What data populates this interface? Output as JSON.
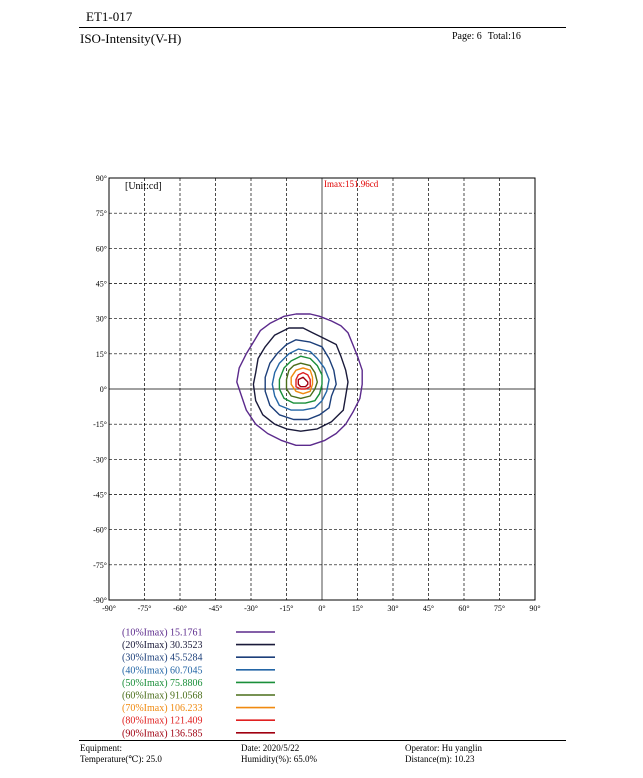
{
  "header": {
    "doc_id": "ET1-017",
    "title": "ISO-Intensity(V-H)",
    "page": "Page: 6",
    "total": "Total:16"
  },
  "chart_data": {
    "type": "contour",
    "unit_label": "[Unit:cd]",
    "imax_label": "Imax:151.96cd",
    "x_ticks": [
      "-90°",
      "-75°",
      "-60°",
      "-45°",
      "-30°",
      "-15°",
      "0°",
      "15°",
      "30°",
      "45°",
      "60°",
      "75°",
      "90°"
    ],
    "y_ticks": [
      "90°",
      "75°",
      "60°",
      "45°",
      "30°",
      "15°",
      "0°",
      "-15°",
      "-30°",
      "-45°",
      "-60°",
      "-75°",
      "-90°"
    ],
    "xlim": [
      -90,
      90
    ],
    "ylim": [
      -90,
      90
    ],
    "grid": true,
    "series": [
      {
        "label": "(10%Imax) 15.1761",
        "color": "#5b2a8c",
        "contour": [
          [
            -5,
            32
          ],
          [
            -1,
            31
          ],
          [
            4,
            29
          ],
          [
            8,
            27
          ],
          [
            11,
            24
          ],
          [
            13,
            19
          ],
          [
            15,
            14
          ],
          [
            17,
            8
          ],
          [
            17,
            2
          ],
          [
            16,
            -4
          ],
          [
            13,
            -10
          ],
          [
            10,
            -15
          ],
          [
            6,
            -19
          ],
          [
            1,
            -22
          ],
          [
            -5,
            -24
          ],
          [
            -11,
            -24
          ],
          [
            -17,
            -22
          ],
          [
            -23,
            -19
          ],
          [
            -28,
            -15
          ],
          [
            -32,
            -9
          ],
          [
            -34,
            -3
          ],
          [
            -36,
            3
          ],
          [
            -35,
            9
          ],
          [
            -32,
            15
          ],
          [
            -29,
            20
          ],
          [
            -26,
            25
          ],
          [
            -22,
            28
          ],
          [
            -16,
            31
          ],
          [
            -11,
            32
          ]
        ]
      },
      {
        "label": "(20%Imax) 30.3523",
        "color": "#1a1a3a",
        "contour": [
          [
            -14,
            26
          ],
          [
            -8,
            26
          ],
          [
            -4,
            24
          ],
          [
            0,
            22
          ],
          [
            6,
            19
          ],
          [
            8,
            14
          ],
          [
            10,
            8
          ],
          [
            11,
            3
          ],
          [
            10,
            -3
          ],
          [
            9,
            -9
          ],
          [
            4,
            -14
          ],
          [
            -2,
            -17
          ],
          [
            -9,
            -18
          ],
          [
            -15,
            -17
          ],
          [
            -20,
            -15
          ],
          [
            -25,
            -11
          ],
          [
            -28,
            -5
          ],
          [
            -29,
            2
          ],
          [
            -28,
            7
          ],
          [
            -27,
            13
          ],
          [
            -24,
            18
          ],
          [
            -20,
            23
          ]
        ]
      },
      {
        "label": "(30%Imax) 45.5284",
        "color": "#1c3f7a",
        "contour": [
          [
            -11,
            21
          ],
          [
            -5,
            20
          ],
          [
            0,
            18
          ],
          [
            3,
            13
          ],
          [
            5,
            8
          ],
          [
            6,
            2
          ],
          [
            4,
            -3
          ],
          [
            3,
            -8
          ],
          [
            -1,
            -11
          ],
          [
            -6,
            -13
          ],
          [
            -12,
            -13
          ],
          [
            -18,
            -11
          ],
          [
            -22,
            -7
          ],
          [
            -24,
            -1
          ],
          [
            -24,
            5
          ],
          [
            -22,
            11
          ],
          [
            -19,
            15
          ],
          [
            -15,
            19
          ]
        ]
      },
      {
        "label": "(40%Imax) 60.7045",
        "color": "#2466a6",
        "contour": [
          [
            -10,
            17
          ],
          [
            -5,
            16
          ],
          [
            -2,
            13
          ],
          [
            1,
            9
          ],
          [
            3,
            4
          ],
          [
            2,
            -1
          ],
          [
            0,
            -5
          ],
          [
            -3,
            -8
          ],
          [
            -8,
            -9
          ],
          [
            -13,
            -9
          ],
          [
            -18,
            -7
          ],
          [
            -20,
            -3
          ],
          [
            -21,
            2
          ],
          [
            -20,
            7
          ],
          [
            -18,
            11
          ],
          [
            -14,
            15
          ]
        ]
      },
      {
        "label": "(50%Imax) 75.8806",
        "color": "#1a8f3a",
        "contour": [
          [
            -9,
            14
          ],
          [
            -5,
            13
          ],
          [
            -2,
            10
          ],
          [
            0,
            6
          ],
          [
            0,
            2
          ],
          [
            -1,
            -2
          ],
          [
            -3,
            -5
          ],
          [
            -7,
            -6
          ],
          [
            -12,
            -6
          ],
          [
            -16,
            -4
          ],
          [
            -18,
            0
          ],
          [
            -18,
            4
          ],
          [
            -16,
            9
          ],
          [
            -13,
            12
          ]
        ]
      },
      {
        "label": "(60%Imax) 91.0568",
        "color": "#4a6e1a",
        "contour": [
          [
            -9,
            11
          ],
          [
            -5,
            10
          ],
          [
            -3,
            7
          ],
          [
            -2,
            3
          ],
          [
            -3,
            0
          ],
          [
            -5,
            -3
          ],
          [
            -9,
            -4
          ],
          [
            -13,
            -3
          ],
          [
            -15,
            0
          ],
          [
            -15,
            4
          ],
          [
            -14,
            8
          ],
          [
            -12,
            10
          ]
        ]
      },
      {
        "label": "(70%Imax) 106.233",
        "color": "#f08a10",
        "contour": [
          [
            -8,
            9
          ],
          [
            -5,
            8
          ],
          [
            -4,
            5
          ],
          [
            -4,
            2
          ],
          [
            -5,
            -1
          ],
          [
            -8,
            -2
          ],
          [
            -11,
            -1
          ],
          [
            -13,
            2
          ],
          [
            -13,
            5
          ],
          [
            -11,
            8
          ]
        ]
      },
      {
        "label": "(80%Imax) 121.409",
        "color": "#e02020",
        "contour": [
          [
            -8,
            7
          ],
          [
            -6,
            6
          ],
          [
            -5,
            4
          ],
          [
            -5,
            1
          ],
          [
            -7,
            0
          ],
          [
            -9,
            0
          ],
          [
            -11,
            1
          ],
          [
            -11,
            4
          ],
          [
            -10,
            6
          ]
        ]
      },
      {
        "label": "(90%Imax) 136.585",
        "color": "#a00010",
        "contour": [
          [
            -8,
            5
          ],
          [
            -7,
            4
          ],
          [
            -6,
            3
          ],
          [
            -6,
            2
          ],
          [
            -7,
            1
          ],
          [
            -9,
            1
          ],
          [
            -10,
            2
          ],
          [
            -10,
            4
          ]
        ]
      }
    ]
  },
  "footer": {
    "equipment": "Equipment:",
    "temperature": "Temperature(℃): 25.0",
    "date": "Date: 2020/5/22",
    "humidity": "Humidity(%): 65.0%",
    "operator": "Operator: Hu yanglin",
    "distance": "Distance(m): 10.23"
  }
}
